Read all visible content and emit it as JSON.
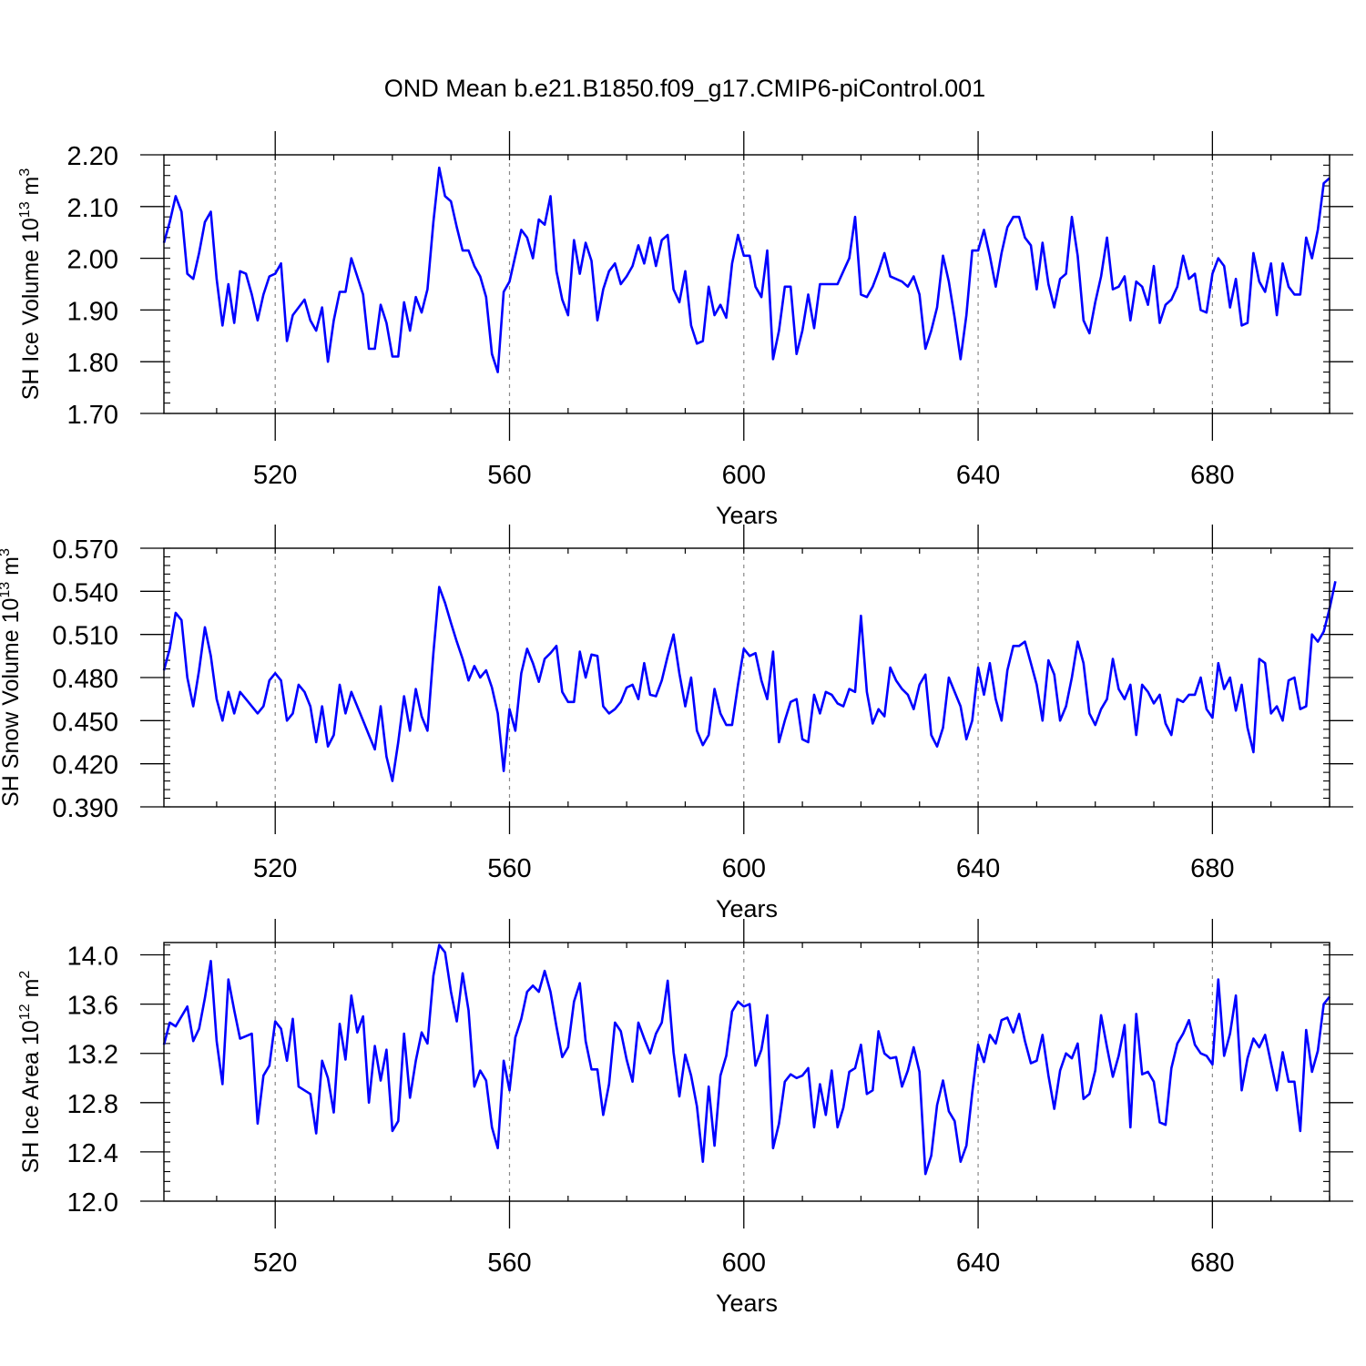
{
  "figure": {
    "title": "OND Mean b.e21.B1850.f09_g17.CMIP6-piControl.001"
  },
  "chart_data": [
    {
      "type": "line",
      "title": "",
      "xlabel": "Years",
      "ylabel": {
        "main": "SH Ice Volume 10",
        "exp": "13",
        "unit": " m",
        "unit_exp": "3"
      },
      "xlim": [
        501,
        700
      ],
      "ylim": [
        1.7,
        2.2
      ],
      "x_ticks": [
        520,
        560,
        600,
        640,
        680
      ],
      "x_tick_labels": [
        "520",
        "560",
        "600",
        "640",
        "680"
      ],
      "y_ticks": [
        1.7,
        1.8,
        1.9,
        2.0,
        2.1,
        2.2
      ],
      "y_tick_labels": [
        "1.70",
        "1.80",
        "1.90",
        "2.00",
        "2.10",
        "2.20"
      ],
      "grid": "dashed vertical at major x ticks",
      "series": [
        {
          "name": "SH Ice Volume",
          "color": "#0000ff",
          "x_start": 501,
          "values": [
            2.03,
            2.07,
            2.12,
            2.09,
            1.97,
            1.96,
            2.01,
            2.07,
            2.09,
            1.96,
            1.87,
            1.95,
            1.875,
            1.975,
            1.97,
            1.93,
            1.88,
            1.93,
            1.965,
            1.97,
            1.99,
            1.84,
            1.89,
            1.905,
            1.92,
            1.88,
            1.86,
            1.905,
            1.8,
            1.88,
            1.935,
            1.935,
            2.0,
            1.965,
            1.93,
            1.825,
            1.825,
            1.91,
            1.875,
            1.81,
            1.81,
            1.915,
            1.86,
            1.925,
            1.895,
            1.94,
            2.07,
            2.175,
            2.12,
            2.11,
            2.06,
            2.015,
            2.015,
            1.985,
            1.965,
            1.925,
            1.815,
            1.78,
            1.935,
            1.955,
            2.005,
            2.055,
            2.04,
            2.0,
            2.075,
            2.065,
            2.12,
            1.975,
            1.92,
            1.89,
            2.035,
            1.97,
            2.03,
            1.995,
            1.88,
            1.94,
            1.975,
            1.99,
            1.95,
            1.965,
            1.985,
            2.025,
            1.99,
            2.04,
            1.985,
            2.035,
            2.045,
            1.94,
            1.915,
            1.975,
            1.87,
            1.835,
            1.84,
            1.945,
            1.89,
            1.91,
            1.885,
            1.99,
            2.045,
            2.005,
            2.005,
            1.945,
            1.925,
            2.015,
            1.805,
            1.86,
            1.945,
            1.945,
            1.815,
            1.86,
            1.93,
            1.865,
            1.95,
            1.95,
            1.95,
            1.95,
            1.975,
            2.0,
            2.08,
            1.93,
            1.925,
            1.945,
            1.975,
            2.01,
            1.965,
            1.96,
            1.955,
            1.945,
            1.965,
            1.93,
            1.825,
            1.86,
            1.905,
            2.005,
            1.955,
            1.885,
            1.805,
            1.89,
            2.015,
            2.015,
            2.055,
            2.005,
            1.945,
            2.01,
            2.06,
            2.08,
            2.08,
            2.04,
            2.025,
            1.94,
            2.03,
            1.95,
            1.905,
            1.96,
            1.97,
            2.08,
            2.005,
            1.88,
            1.855,
            1.915,
            1.965,
            2.04,
            1.94,
            1.945,
            1.965,
            1.88,
            1.955,
            1.945,
            1.91,
            1.985,
            1.875,
            1.91,
            1.92,
            1.945,
            2.005,
            1.96,
            1.97,
            1.9,
            1.895,
            1.97,
            2.0,
            1.985,
            1.905,
            1.96,
            1.87,
            1.875,
            2.01,
            1.955,
            1.935,
            1.99,
            1.89,
            1.99,
            1.945,
            1.93,
            1.93,
            2.04,
            2.0,
            2.055,
            2.145,
            2.155
          ]
        }
      ]
    },
    {
      "type": "line",
      "title": "",
      "xlabel": "Years",
      "ylabel": {
        "main": "SH Snow Volume 10",
        "exp": "13",
        "unit": " m",
        "unit_exp": "3"
      },
      "xlim": [
        501,
        700
      ],
      "ylim": [
        0.39,
        0.57
      ],
      "x_ticks": [
        520,
        560,
        600,
        640,
        680
      ],
      "x_tick_labels": [
        "520",
        "560",
        "600",
        "640",
        "680"
      ],
      "y_ticks": [
        0.39,
        0.42,
        0.45,
        0.48,
        0.51,
        0.54,
        0.57
      ],
      "y_tick_labels": [
        "0.390",
        "0.420",
        "0.450",
        "0.480",
        "0.510",
        "0.540",
        "0.570"
      ],
      "grid": "dashed vertical at major x ticks",
      "series": [
        {
          "name": "SH Snow Volume",
          "color": "#0000ff",
          "x_start": 501,
          "values": [
            0.485,
            0.5,
            0.525,
            0.52,
            0.48,
            0.46,
            0.485,
            0.515,
            0.495,
            0.465,
            0.45,
            0.47,
            0.455,
            0.47,
            0.465,
            0.46,
            0.455,
            0.46,
            0.478,
            0.483,
            0.478,
            0.45,
            0.455,
            0.475,
            0.47,
            0.46,
            0.435,
            0.46,
            0.432,
            0.44,
            0.475,
            0.455,
            0.47,
            0.46,
            0.45,
            0.44,
            0.43,
            0.46,
            0.425,
            0.408,
            0.435,
            0.467,
            0.443,
            0.472,
            0.453,
            0.443,
            0.497,
            0.543,
            0.532,
            0.518,
            0.505,
            0.493,
            0.478,
            0.488,
            0.48,
            0.485,
            0.473,
            0.455,
            0.415,
            0.458,
            0.443,
            0.483,
            0.5,
            0.49,
            0.477,
            0.493,
            0.497,
            0.502,
            0.47,
            0.463,
            0.463,
            0.498,
            0.48,
            0.496,
            0.495,
            0.46,
            0.455,
            0.458,
            0.463,
            0.473,
            0.475,
            0.465,
            0.49,
            0.468,
            0.467,
            0.478,
            0.495,
            0.51,
            0.483,
            0.46,
            0.48,
            0.443,
            0.433,
            0.44,
            0.472,
            0.455,
            0.447,
            0.447,
            0.475,
            0.5,
            0.495,
            0.497,
            0.478,
            0.465,
            0.498,
            0.435,
            0.45,
            0.463,
            0.465,
            0.437,
            0.435,
            0.468,
            0.455,
            0.47,
            0.468,
            0.462,
            0.46,
            0.472,
            0.47,
            0.523,
            0.47,
            0.448,
            0.458,
            0.453,
            0.487,
            0.478,
            0.472,
            0.468,
            0.458,
            0.475,
            0.482,
            0.44,
            0.432,
            0.445,
            0.48,
            0.47,
            0.46,
            0.437,
            0.45,
            0.487,
            0.468,
            0.49,
            0.465,
            0.45,
            0.485,
            0.502,
            0.502,
            0.505,
            0.49,
            0.475,
            0.45,
            0.492,
            0.482,
            0.45,
            0.46,
            0.48,
            0.505,
            0.49,
            0.455,
            0.447,
            0.458,
            0.465,
            0.493,
            0.472,
            0.465,
            0.475,
            0.44,
            0.475,
            0.47,
            0.462,
            0.468,
            0.448,
            0.44,
            0.465,
            0.463,
            0.468,
            0.468,
            0.48,
            0.458,
            0.452,
            0.49,
            0.472,
            0.48,
            0.457,
            0.475,
            0.445,
            0.428,
            0.493,
            0.49,
            0.455,
            0.46,
            0.45,
            0.478,
            0.48,
            0.458,
            0.46,
            0.51,
            0.505,
            0.512,
            0.528,
            0.547
          ]
        }
      ]
    },
    {
      "type": "line",
      "title": "",
      "xlabel": "Years",
      "ylabel": {
        "main": "SH Ice Area 10",
        "exp": "12",
        "unit": " m",
        "unit_exp": "2"
      },
      "xlim": [
        501,
        700
      ],
      "ylim": [
        12.0,
        14.1
      ],
      "x_ticks": [
        520,
        560,
        600,
        640,
        680
      ],
      "x_tick_labels": [
        "520",
        "560",
        "600",
        "640",
        "680"
      ],
      "y_ticks": [
        12.0,
        12.4,
        12.8,
        13.2,
        13.6,
        14.0
      ],
      "y_tick_labels": [
        "12.0",
        "12.4",
        "12.8",
        "13.2",
        "13.6",
        "14.0"
      ],
      "grid": "dashed vertical at major x ticks",
      "series": [
        {
          "name": "SH Ice Area",
          "color": "#0000ff",
          "x_start": 501,
          "values": [
            13.27,
            13.45,
            13.42,
            13.5,
            13.58,
            13.3,
            13.4,
            13.65,
            13.95,
            13.3,
            12.95,
            13.8,
            13.55,
            13.32,
            13.34,
            13.36,
            12.63,
            13.02,
            13.1,
            13.46,
            13.4,
            13.14,
            13.48,
            12.93,
            12.9,
            12.87,
            12.55,
            13.14,
            13.0,
            12.72,
            13.44,
            13.15,
            13.67,
            13.37,
            13.5,
            12.8,
            13.26,
            12.98,
            13.23,
            12.57,
            12.65,
            13.36,
            12.84,
            13.14,
            13.37,
            13.28,
            13.83,
            14.08,
            14.02,
            13.7,
            13.46,
            13.85,
            13.55,
            12.93,
            13.06,
            12.98,
            12.6,
            12.43,
            13.14,
            12.9,
            13.33,
            13.48,
            13.7,
            13.75,
            13.7,
            13.87,
            13.7,
            13.42,
            13.17,
            13.25,
            13.62,
            13.77,
            13.3,
            13.07,
            13.07,
            12.7,
            12.95,
            13.45,
            13.38,
            13.15,
            12.97,
            13.45,
            13.32,
            13.2,
            13.36,
            13.45,
            13.79,
            13.21,
            12.85,
            13.19,
            13.02,
            12.77,
            12.32,
            12.93,
            12.45,
            13.02,
            13.18,
            13.54,
            13.62,
            13.58,
            13.6,
            13.1,
            13.23,
            13.51,
            12.43,
            12.63,
            12.97,
            13.03,
            13.0,
            13.02,
            13.08,
            12.6,
            12.95,
            12.7,
            13.06,
            12.6,
            12.76,
            13.05,
            13.08,
            13.27,
            12.87,
            12.9,
            13.38,
            13.2,
            13.16,
            13.17,
            12.93,
            13.06,
            13.25,
            13.05,
            12.22,
            12.37,
            12.78,
            12.98,
            12.73,
            12.65,
            12.32,
            12.45,
            12.88,
            13.27,
            13.13,
            13.35,
            13.28,
            13.47,
            13.49,
            13.37,
            13.52,
            13.3,
            13.12,
            13.14,
            13.35,
            13.02,
            12.75,
            13.06,
            13.2,
            13.16,
            13.28,
            12.83,
            12.87,
            13.06,
            13.51,
            13.25,
            13.01,
            13.18,
            13.43,
            12.6,
            13.52,
            13.03,
            13.05,
            12.97,
            12.64,
            12.62,
            13.08,
            13.28,
            13.36,
            13.47,
            13.27,
            13.2,
            13.18,
            13.11,
            13.8,
            13.18,
            13.36,
            13.67,
            12.9,
            13.16,
            13.32,
            13.25,
            13.35,
            13.12,
            12.9,
            13.21,
            12.97,
            12.97,
            12.57,
            13.39,
            13.05,
            13.22,
            13.6,
            13.66
          ]
        }
      ]
    }
  ]
}
